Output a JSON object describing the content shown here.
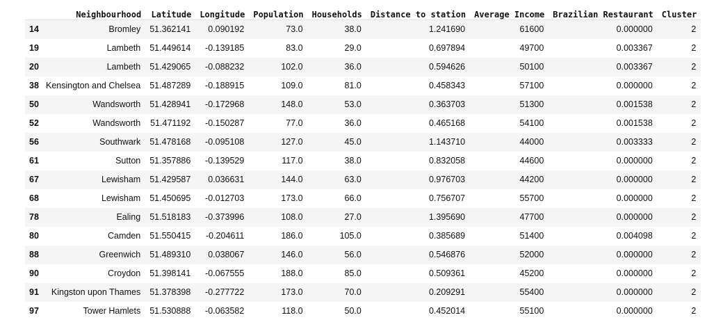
{
  "table": {
    "index_header": "",
    "columns": [
      "Neighbourhood",
      "Latitude",
      "Longitude",
      "Population",
      "Households",
      "Distance to station",
      "Average Income",
      "Brazilian Restaurant",
      "Cluster"
    ],
    "rows": [
      {
        "index": "14",
        "cells": [
          "Bromley",
          "51.362141",
          "0.090192",
          "73.0",
          "38.0",
          "1.241690",
          "61600",
          "0.000000",
          "2"
        ]
      },
      {
        "index": "19",
        "cells": [
          "Lambeth",
          "51.449614",
          "-0.139185",
          "83.0",
          "29.0",
          "0.697894",
          "49700",
          "0.003367",
          "2"
        ]
      },
      {
        "index": "20",
        "cells": [
          "Lambeth",
          "51.429065",
          "-0.088232",
          "102.0",
          "36.0",
          "0.594626",
          "50100",
          "0.003367",
          "2"
        ]
      },
      {
        "index": "38",
        "cells": [
          "Kensington and Chelsea",
          "51.487289",
          "-0.188915",
          "109.0",
          "81.0",
          "0.458343",
          "57100",
          "0.000000",
          "2"
        ]
      },
      {
        "index": "50",
        "cells": [
          "Wandsworth",
          "51.428941",
          "-0.172968",
          "148.0",
          "53.0",
          "0.363703",
          "51300",
          "0.001538",
          "2"
        ]
      },
      {
        "index": "52",
        "cells": [
          "Wandsworth",
          "51.471192",
          "-0.150287",
          "77.0",
          "36.0",
          "0.465168",
          "54100",
          "0.001538",
          "2"
        ]
      },
      {
        "index": "56",
        "cells": [
          "Southwark",
          "51.478168",
          "-0.095108",
          "127.0",
          "45.0",
          "1.143710",
          "44000",
          "0.003333",
          "2"
        ]
      },
      {
        "index": "61",
        "cells": [
          "Sutton",
          "51.357886",
          "-0.139529",
          "117.0",
          "38.0",
          "0.832058",
          "44600",
          "0.000000",
          "2"
        ]
      },
      {
        "index": "67",
        "cells": [
          "Lewisham",
          "51.429587",
          "0.036631",
          "144.0",
          "63.0",
          "0.976703",
          "44200",
          "0.000000",
          "2"
        ]
      },
      {
        "index": "68",
        "cells": [
          "Lewisham",
          "51.450695",
          "-0.012703",
          "173.0",
          "66.0",
          "0.756707",
          "55700",
          "0.000000",
          "2"
        ]
      },
      {
        "index": "78",
        "cells": [
          "Ealing",
          "51.518183",
          "-0.373996",
          "108.0",
          "27.0",
          "1.395690",
          "47700",
          "0.000000",
          "2"
        ]
      },
      {
        "index": "80",
        "cells": [
          "Camden",
          "51.550415",
          "-0.204611",
          "186.0",
          "105.0",
          "0.385689",
          "51400",
          "0.004098",
          "2"
        ]
      },
      {
        "index": "88",
        "cells": [
          "Greenwich",
          "51.489310",
          "0.038067",
          "146.0",
          "56.0",
          "0.546876",
          "52000",
          "0.000000",
          "2"
        ]
      },
      {
        "index": "90",
        "cells": [
          "Croydon",
          "51.398141",
          "-0.067555",
          "188.0",
          "85.0",
          "0.509361",
          "45200",
          "0.000000",
          "2"
        ]
      },
      {
        "index": "91",
        "cells": [
          "Kingston upon Thames",
          "51.378398",
          "-0.277722",
          "173.0",
          "70.0",
          "0.209291",
          "55400",
          "0.000000",
          "2"
        ]
      },
      {
        "index": "97",
        "cells": [
          "Tower Hamlets",
          "51.530888",
          "-0.063582",
          "118.0",
          "50.0",
          "0.452014",
          "55100",
          "0.000000",
          "2"
        ]
      }
    ]
  }
}
